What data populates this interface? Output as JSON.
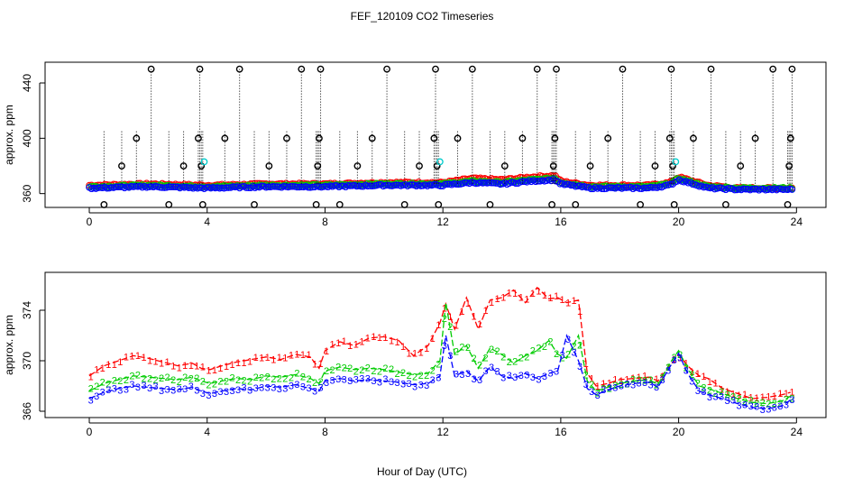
{
  "title": "FEF_120109  CO2 Timeseries",
  "xlabel": "Hour of Day (UTC)",
  "colors": {
    "series1": "#ff0000",
    "series2": "#00cc00",
    "series3": "#0000ff",
    "series_cyan": "#00cccc",
    "points_black": "#000000",
    "axes": "#000000"
  },
  "chart_data": [
    {
      "type": "scatter",
      "panel": "top",
      "ylabel": "approx. ppm",
      "xlim": [
        -1.5,
        25
      ],
      "ylim": [
        350,
        455
      ],
      "xticks": [
        0,
        4,
        8,
        12,
        16,
        20,
        24
      ],
      "yticks": [
        360,
        400,
        440
      ],
      "baseline_series": [
        {
          "name": "1",
          "color": "#ff0000",
          "x": [
            0.0,
            2.0,
            4.0,
            6.0,
            8.0,
            10.0,
            12.0,
            13.0,
            14.0,
            15.0,
            15.8,
            16.0,
            17.0,
            18.0,
            19.0,
            19.7,
            20.0,
            21.0,
            22.0,
            24.0
          ],
          "y": [
            366,
            367,
            366,
            367,
            367,
            368,
            368,
            371,
            370,
            372,
            373,
            369,
            366,
            366,
            366,
            368,
            372,
            366,
            364,
            364
          ]
        },
        {
          "name": "2",
          "color": "#00cc00",
          "x": [
            0.0,
            2.0,
            4.0,
            6.0,
            8.0,
            10.0,
            12.0,
            13.0,
            14.0,
            15.0,
            15.8,
            16.0,
            17.0,
            18.0,
            19.0,
            19.7,
            20.0,
            21.0,
            22.0,
            24.0
          ],
          "y": [
            365,
            366,
            365,
            366,
            366,
            367,
            367,
            369,
            368,
            370,
            371,
            368,
            365,
            365,
            365,
            367,
            371,
            365,
            364,
            364
          ]
        },
        {
          "name": "3",
          "color": "#0000ff",
          "x": [
            0.0,
            2.0,
            4.0,
            6.0,
            8.0,
            10.0,
            12.0,
            13.0,
            14.0,
            15.0,
            15.8,
            16.0,
            17.0,
            18.0,
            19.0,
            19.7,
            20.0,
            21.0,
            22.0,
            24.0
          ],
          "y": [
            364,
            365,
            364,
            365,
            365,
            366,
            366,
            368,
            367,
            369,
            370,
            367,
            364,
            364,
            364,
            366,
            370,
            364,
            363,
            363
          ]
        }
      ],
      "cyan_points": {
        "x": [
          3.9,
          11.9,
          19.9
        ],
        "y": [
          383,
          383,
          383
        ]
      },
      "calibration_points": {
        "x": [
          0.5,
          1.1,
          1.6,
          2.1,
          2.7,
          3.2,
          3.7,
          3.75,
          3.8,
          3.85,
          4.6,
          5.1,
          5.6,
          6.1,
          6.7,
          7.2,
          7.7,
          7.75,
          7.8,
          7.85,
          8.5,
          9.1,
          9.6,
          10.1,
          10.7,
          11.2,
          11.7,
          11.75,
          11.8,
          11.85,
          12.5,
          13.0,
          13.6,
          14.1,
          14.7,
          15.2,
          15.7,
          15.75,
          15.8,
          15.85,
          16.5,
          17.0,
          17.6,
          18.1,
          18.7,
          19.2,
          19.7,
          19.75,
          19.8,
          19.85,
          20.5,
          21.1,
          21.6,
          22.1,
          22.6,
          23.2,
          23.7,
          23.75,
          23.8,
          23.85
        ],
        "y": [
          352,
          380,
          400,
          450,
          352,
          380,
          400,
          450,
          380,
          352,
          400,
          450,
          352,
          380,
          400,
          450,
          352,
          380,
          400,
          450,
          352,
          380,
          400,
          450,
          352,
          380,
          400,
          450,
          380,
          352,
          400,
          450,
          352,
          380,
          400,
          450,
          352,
          380,
          400,
          450,
          352,
          380,
          400,
          450,
          352,
          380,
          400,
          450,
          380,
          352,
          400,
          450,
          352,
          380,
          400,
          450,
          352,
          380,
          400,
          450
        ]
      }
    },
    {
      "type": "line",
      "panel": "bottom",
      "ylabel": "approx. ppm",
      "xlim": [
        -1.5,
        25
      ],
      "ylim": [
        365.5,
        377
      ],
      "xticks": [
        0,
        4,
        8,
        12,
        16,
        20,
        24
      ],
      "yticks": [
        366,
        370,
        374
      ],
      "series": [
        {
          "name": "1",
          "color": "#ff0000",
          "x": [
            0.0,
            0.5,
            1.0,
            1.5,
            2.0,
            2.5,
            3.0,
            3.5,
            3.8,
            4.1,
            4.5,
            5.0,
            5.5,
            6.0,
            6.5,
            7.0,
            7.5,
            7.8,
            8.0,
            8.5,
            9.0,
            9.5,
            10.0,
            10.5,
            11.0,
            11.5,
            11.9,
            12.1,
            12.4,
            12.8,
            13.2,
            13.6,
            14.0,
            14.4,
            14.8,
            15.2,
            15.6,
            15.9,
            16.2,
            16.6,
            16.9,
            17.2,
            17.6,
            18.0,
            18.5,
            19.0,
            19.3,
            19.7,
            20.0,
            20.3,
            20.7,
            21.0,
            21.5,
            22.0,
            22.5,
            23.0,
            23.5,
            23.8
          ],
          "y": [
            368.8,
            369.6,
            370.0,
            370.4,
            370.2,
            369.9,
            369.6,
            369.8,
            369.4,
            369.3,
            369.6,
            369.9,
            370.1,
            370.3,
            370.1,
            370.5,
            370.3,
            369.4,
            370.8,
            371.5,
            371.2,
            371.8,
            371.9,
            371.6,
            370.4,
            371.2,
            373.0,
            374.5,
            372.5,
            375.0,
            372.5,
            374.8,
            375.0,
            375.6,
            374.6,
            375.8,
            374.9,
            375.0,
            374.6,
            374.8,
            369.0,
            368.0,
            368.2,
            368.5,
            368.6,
            368.7,
            368.4,
            369.6,
            370.5,
            369.6,
            368.8,
            368.6,
            367.8,
            367.4,
            367.0,
            367.1,
            367.3,
            367.5
          ]
        },
        {
          "name": "2",
          "color": "#00cc00",
          "x": [
            0.0,
            0.5,
            1.0,
            1.5,
            2.0,
            2.5,
            3.0,
            3.5,
            3.8,
            4.1,
            4.5,
            5.0,
            5.5,
            6.0,
            6.5,
            7.0,
            7.5,
            7.8,
            8.0,
            8.5,
            9.0,
            9.5,
            10.0,
            10.5,
            11.0,
            11.5,
            11.9,
            12.1,
            12.4,
            12.8,
            13.2,
            13.6,
            14.0,
            14.4,
            14.8,
            15.2,
            15.6,
            15.9,
            16.2,
            16.6,
            16.9,
            17.2,
            17.6,
            18.0,
            18.5,
            19.0,
            19.3,
            19.7,
            20.0,
            20.3,
            20.7,
            21.0,
            21.5,
            22.0,
            22.5,
            23.0,
            23.5,
            23.8
          ],
          "y": [
            367.6,
            368.2,
            368.5,
            368.8,
            368.7,
            368.6,
            368.5,
            368.7,
            368.4,
            368.2,
            368.4,
            368.6,
            368.5,
            368.8,
            368.7,
            368.9,
            368.6,
            368.2,
            369.2,
            369.5,
            369.3,
            369.4,
            369.3,
            369.1,
            368.9,
            369.0,
            370.0,
            374.6,
            370.5,
            371.2,
            369.4,
            371.0,
            370.5,
            369.8,
            370.4,
            370.8,
            371.6,
            370.5,
            370.2,
            372.0,
            368.4,
            367.6,
            367.9,
            368.2,
            368.4,
            368.5,
            368.1,
            369.8,
            370.8,
            369.4,
            368.0,
            367.8,
            367.4,
            367.0,
            366.7,
            366.6,
            366.8,
            367.2
          ]
        },
        {
          "name": "3",
          "color": "#0000ff",
          "x": [
            0.0,
            0.5,
            1.0,
            1.5,
            2.0,
            2.5,
            3.0,
            3.5,
            3.8,
            4.1,
            4.5,
            5.0,
            5.5,
            6.0,
            6.5,
            7.0,
            7.5,
            7.8,
            8.0,
            8.5,
            9.0,
            9.5,
            10.0,
            10.5,
            11.0,
            11.5,
            11.9,
            12.1,
            12.4,
            12.8,
            13.2,
            13.6,
            14.0,
            14.4,
            14.8,
            15.2,
            15.6,
            15.9,
            16.2,
            16.6,
            16.9,
            17.2,
            17.6,
            18.0,
            18.5,
            19.0,
            19.3,
            19.7,
            20.0,
            20.3,
            20.7,
            21.0,
            21.5,
            22.0,
            22.5,
            23.0,
            23.5,
            23.8
          ],
          "y": [
            367.0,
            367.5,
            367.8,
            368.0,
            367.9,
            367.8,
            367.7,
            367.9,
            367.6,
            367.4,
            367.6,
            367.8,
            367.7,
            368.0,
            367.9,
            368.1,
            367.8,
            367.6,
            368.4,
            368.6,
            368.4,
            368.5,
            368.4,
            368.3,
            368.1,
            368.2,
            368.8,
            372.0,
            368.8,
            369.2,
            368.4,
            369.5,
            368.8,
            368.6,
            369.0,
            368.6,
            369.0,
            369.2,
            372.0,
            370.0,
            367.8,
            367.3,
            367.7,
            368.0,
            368.2,
            368.3,
            367.9,
            369.5,
            370.6,
            369.0,
            367.6,
            367.3,
            367.0,
            366.6,
            366.3,
            366.2,
            366.4,
            366.9
          ]
        }
      ]
    }
  ]
}
